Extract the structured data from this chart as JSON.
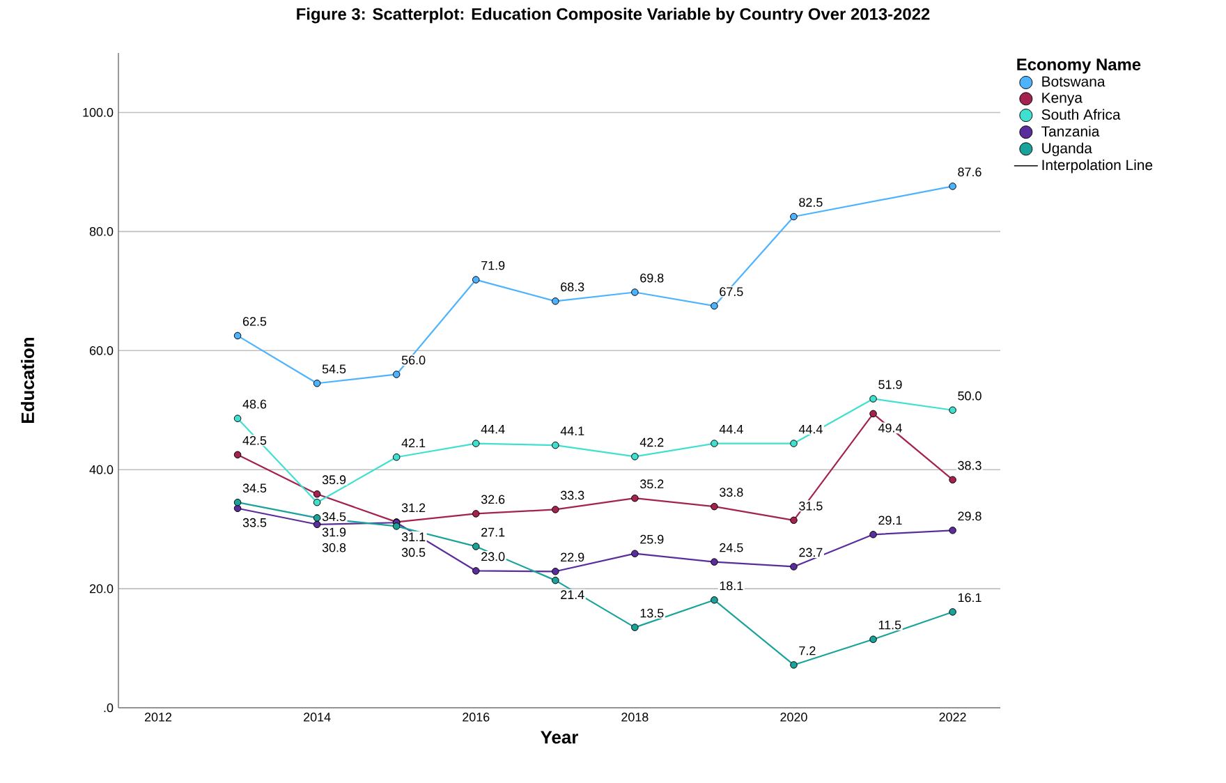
{
  "chart_data": {
    "type": "line",
    "title": "Figure 3: Scatterplot: Education Composite Variable by Country Over 2013-2022",
    "xlabel": "Year",
    "ylabel": "Education",
    "legend_title": "Economy Name",
    "annotations": [
      "Interpolation Line"
    ],
    "xlim": [
      2011.5,
      2022.6
    ],
    "xticks": [
      2012,
      2014,
      2016,
      2018,
      2020,
      2022
    ],
    "ylim": [
      0,
      110
    ],
    "yticks": [
      {
        "value": 0,
        "label": ".0"
      },
      {
        "value": 20,
        "label": "20.0"
      },
      {
        "value": 40,
        "label": "40.0"
      },
      {
        "value": 60,
        "label": "60.0"
      },
      {
        "value": 80,
        "label": "80.0"
      },
      {
        "value": 100,
        "label": "100.0"
      }
    ],
    "grid": "y",
    "legend": "right",
    "data_labels": true,
    "marker": "circle",
    "line_style": "solid",
    "series": [
      {
        "name": "Botswana",
        "color": "#4db3ff",
        "x": [
          2013,
          2014,
          2015,
          2016,
          2017,
          2018,
          2019,
          2020,
          2022
        ],
        "values": [
          62.5,
          54.5,
          56.0,
          71.9,
          68.3,
          69.8,
          67.5,
          82.5,
          87.6
        ],
        "value_labels": [
          "62.5",
          "54.5",
          "56.0",
          "71.9",
          "68.3",
          "69.8",
          "67.5",
          "82.5",
          "87.6"
        ]
      },
      {
        "name": "Kenya",
        "color": "#a3224f",
        "x": [
          2013,
          2014,
          2015,
          2016,
          2017,
          2018,
          2019,
          2020,
          2021,
          2022
        ],
        "values": [
          42.5,
          35.9,
          31.2,
          32.6,
          33.3,
          35.2,
          33.8,
          31.5,
          49.4,
          38.3
        ],
        "value_labels": [
          "42.5",
          "35.9",
          "31.2",
          "32.6",
          "33.3",
          "35.2",
          "33.8",
          "31.5",
          "49.4",
          "38.3"
        ]
      },
      {
        "name": "South Africa",
        "color": "#40e0d0",
        "x": [
          2013,
          2014,
          2015,
          2016,
          2017,
          2018,
          2019,
          2020,
          2021,
          2022
        ],
        "values": [
          48.6,
          34.5,
          42.1,
          44.4,
          44.1,
          42.2,
          44.4,
          44.4,
          51.9,
          50.0
        ],
        "value_labels": [
          "48.6",
          "34.5",
          "42.1",
          "44.4",
          "44.1",
          "42.2",
          "44.4",
          "44.4",
          "51.9",
          "50.0"
        ]
      },
      {
        "name": "Tanzania",
        "color": "#5a2d9c",
        "x": [
          2013,
          2014,
          2015,
          2016,
          2017,
          2018,
          2019,
          2020,
          2021,
          2022
        ],
        "values": [
          33.5,
          30.8,
          31.1,
          23.0,
          22.9,
          25.9,
          24.5,
          23.7,
          29.1,
          29.8
        ],
        "value_labels": [
          "33.5",
          "30.8",
          "31.1",
          "23.0",
          "22.9",
          "25.9",
          "24.5",
          "23.7",
          "29.1",
          "29.8"
        ]
      },
      {
        "name": "Uganda",
        "color": "#1aa39a",
        "x": [
          2013,
          2014,
          2015,
          2016,
          2017,
          2018,
          2019,
          2020,
          2021,
          2022
        ],
        "values": [
          34.5,
          31.9,
          30.5,
          27.1,
          21.4,
          13.5,
          18.1,
          7.2,
          11.5,
          16.1
        ],
        "value_labels": [
          "34.5",
          "31.9",
          "30.5",
          "27.1",
          "21.4",
          "13.5",
          "18.1",
          "7.2",
          "11.5",
          "16.1"
        ]
      }
    ]
  }
}
